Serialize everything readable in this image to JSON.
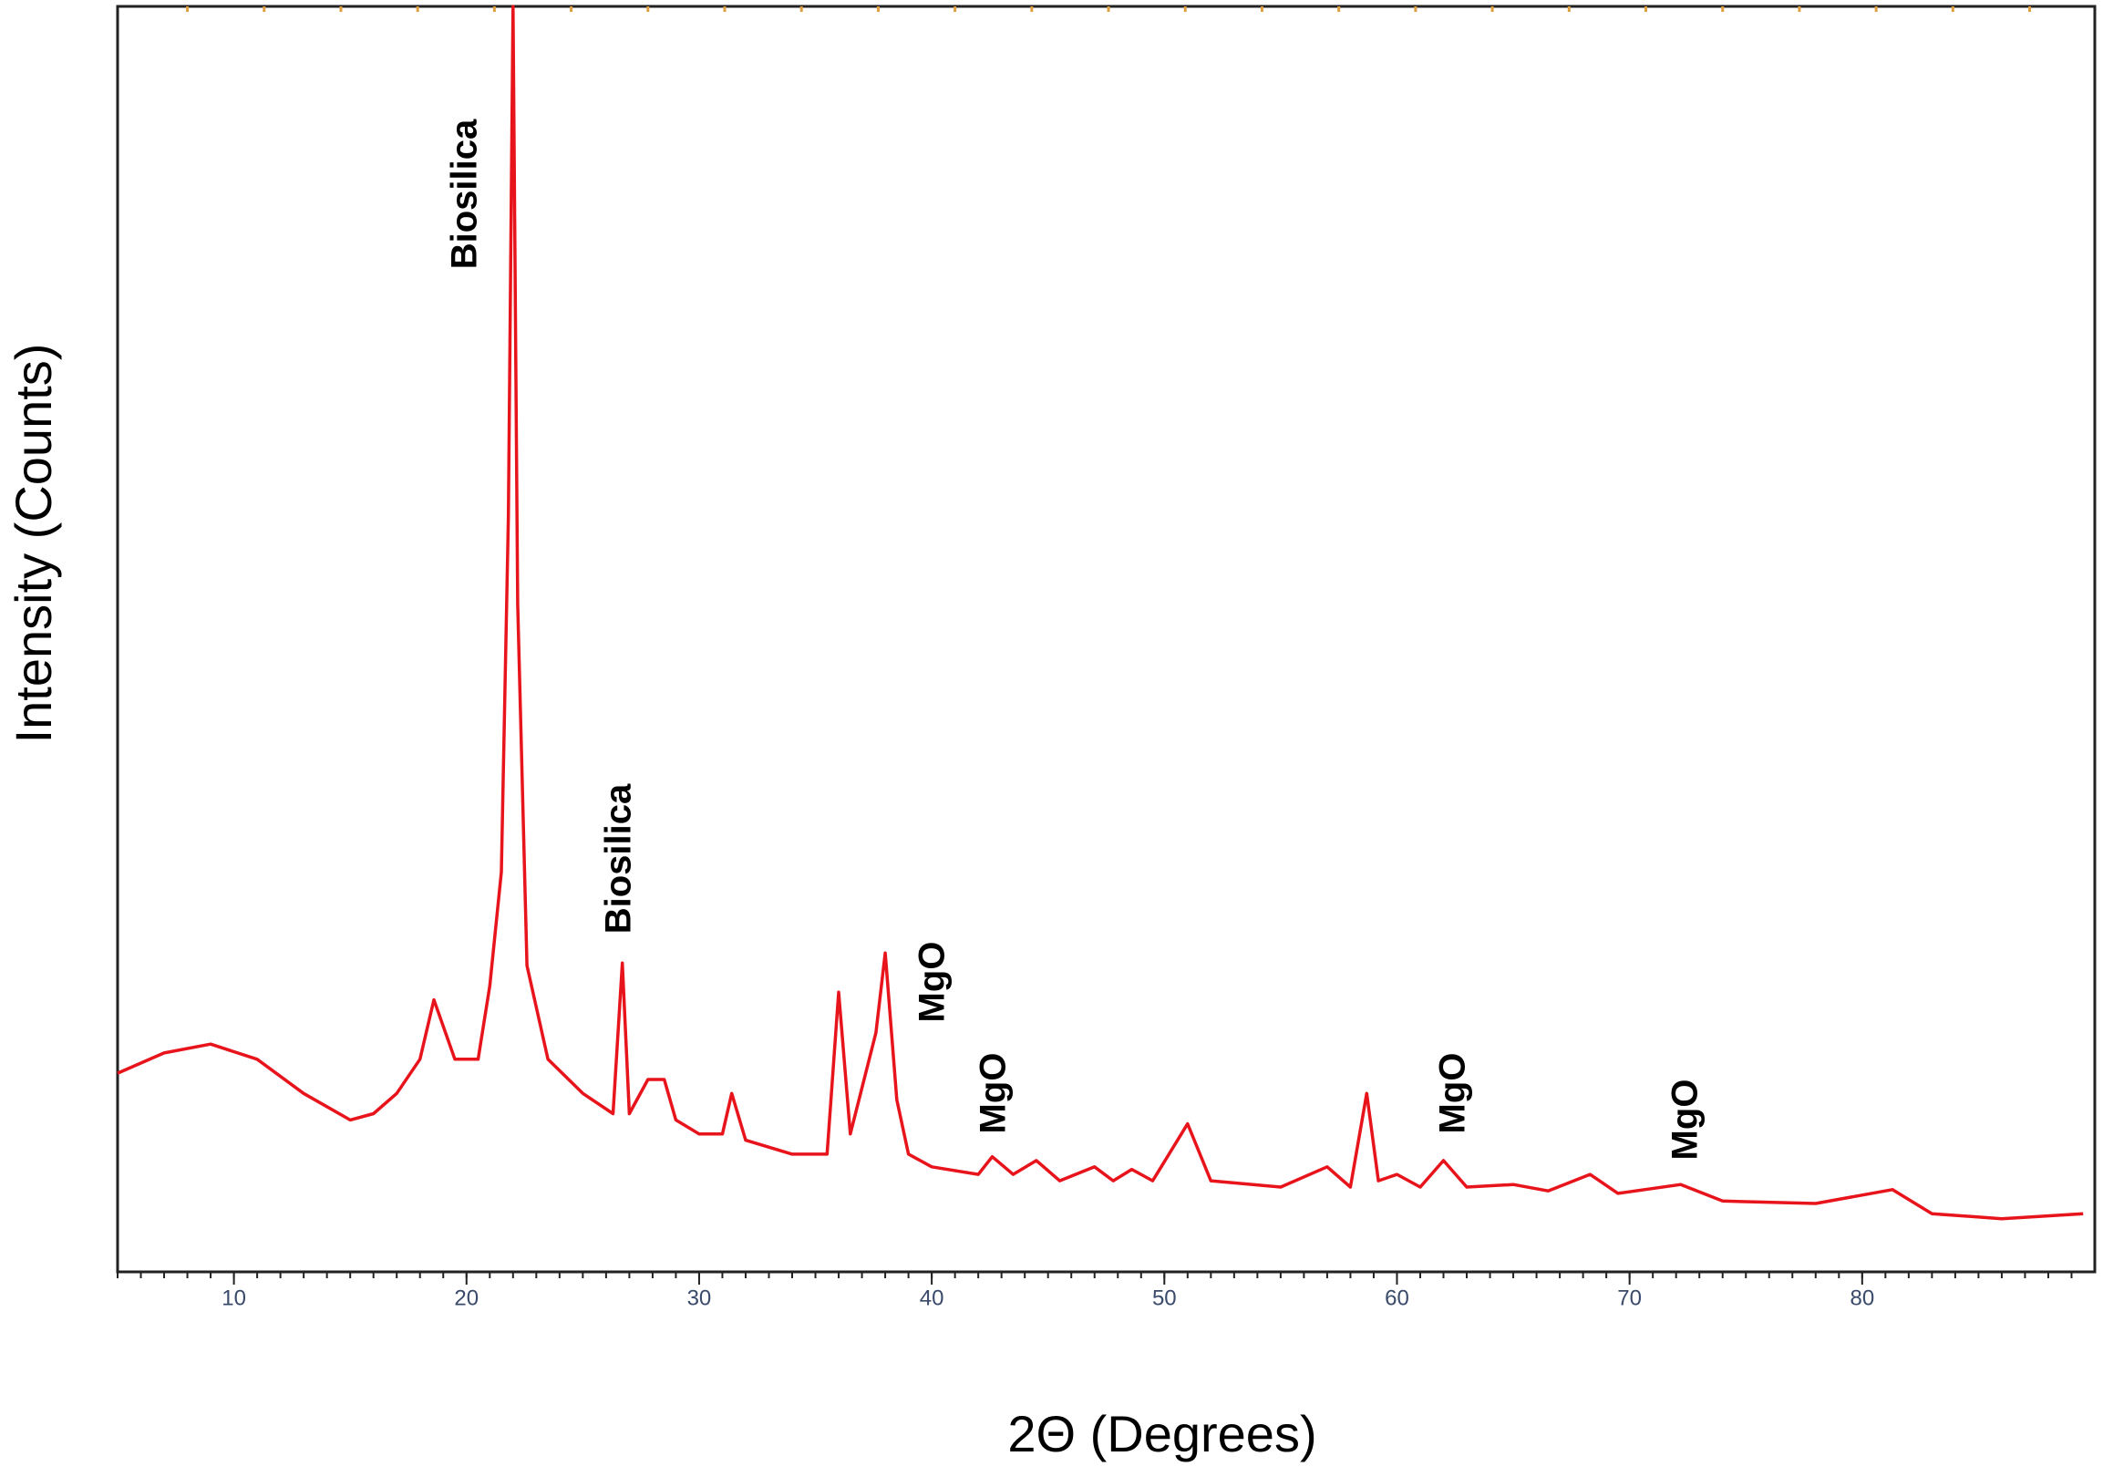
{
  "chart_data": {
    "type": "line",
    "x_label": "2Θ (Degrees)",
    "y_label": "Intensity (Counts)",
    "xlim": [
      5,
      90
    ],
    "ylim": [
      0,
      100
    ],
    "xticks": [
      10,
      20,
      30,
      40,
      50,
      60,
      70,
      80
    ],
    "annotations": [
      "Biosilica",
      "Biosilica",
      "MgO",
      "MgO",
      "MgO",
      "MgO"
    ],
    "series": [
      {
        "color": "#e8141c",
        "x": [
          5,
          7,
          9,
          11,
          13,
          15,
          16,
          17,
          18,
          18.6,
          19.5,
          20.5,
          21,
          21.5,
          21.8,
          22.0,
          22.2,
          22.6,
          23.5,
          25,
          26.3,
          26.7,
          27,
          27.8,
          28.5,
          29,
          30,
          31,
          31.4,
          32,
          34,
          35.5,
          36,
          36.5,
          37.6,
          38,
          38.5,
          39,
          40,
          42,
          42.6,
          43.5,
          44.5,
          45.5,
          47,
          47.8,
          48.6,
          49.5,
          51,
          52,
          55,
          57,
          58,
          58.7,
          59.2,
          60,
          61,
          62,
          63,
          65,
          66.5,
          68.3,
          69.5,
          72.2,
          74,
          78,
          81.3,
          83,
          86,
          89.5
        ],
        "values": [
          15.7,
          17.3,
          18,
          16.8,
          14.1,
          12,
          12.5,
          14.1,
          16.8,
          21.5,
          16.8,
          16.8,
          22.6,
          31.6,
          59.7,
          100,
          52.8,
          24.2,
          16.8,
          14.1,
          12.5,
          24.4,
          12.5,
          15.2,
          15.2,
          12,
          10.9,
          10.9,
          14.1,
          10.4,
          9.3,
          9.3,
          22.1,
          10.9,
          18.9,
          25.2,
          13.6,
          9.3,
          8.3,
          7.7,
          9.1,
          7.7,
          8.8,
          7.2,
          8.3,
          7.2,
          8.1,
          7.2,
          11.7,
          7.2,
          6.7,
          8.3,
          6.7,
          14.1,
          7.2,
          7.7,
          6.7,
          8.8,
          6.7,
          6.9,
          6.4,
          7.7,
          6.2,
          6.9,
          5.6,
          5.4,
          6.5,
          4.6,
          4.2,
          4.6
        ]
      }
    ]
  }
}
